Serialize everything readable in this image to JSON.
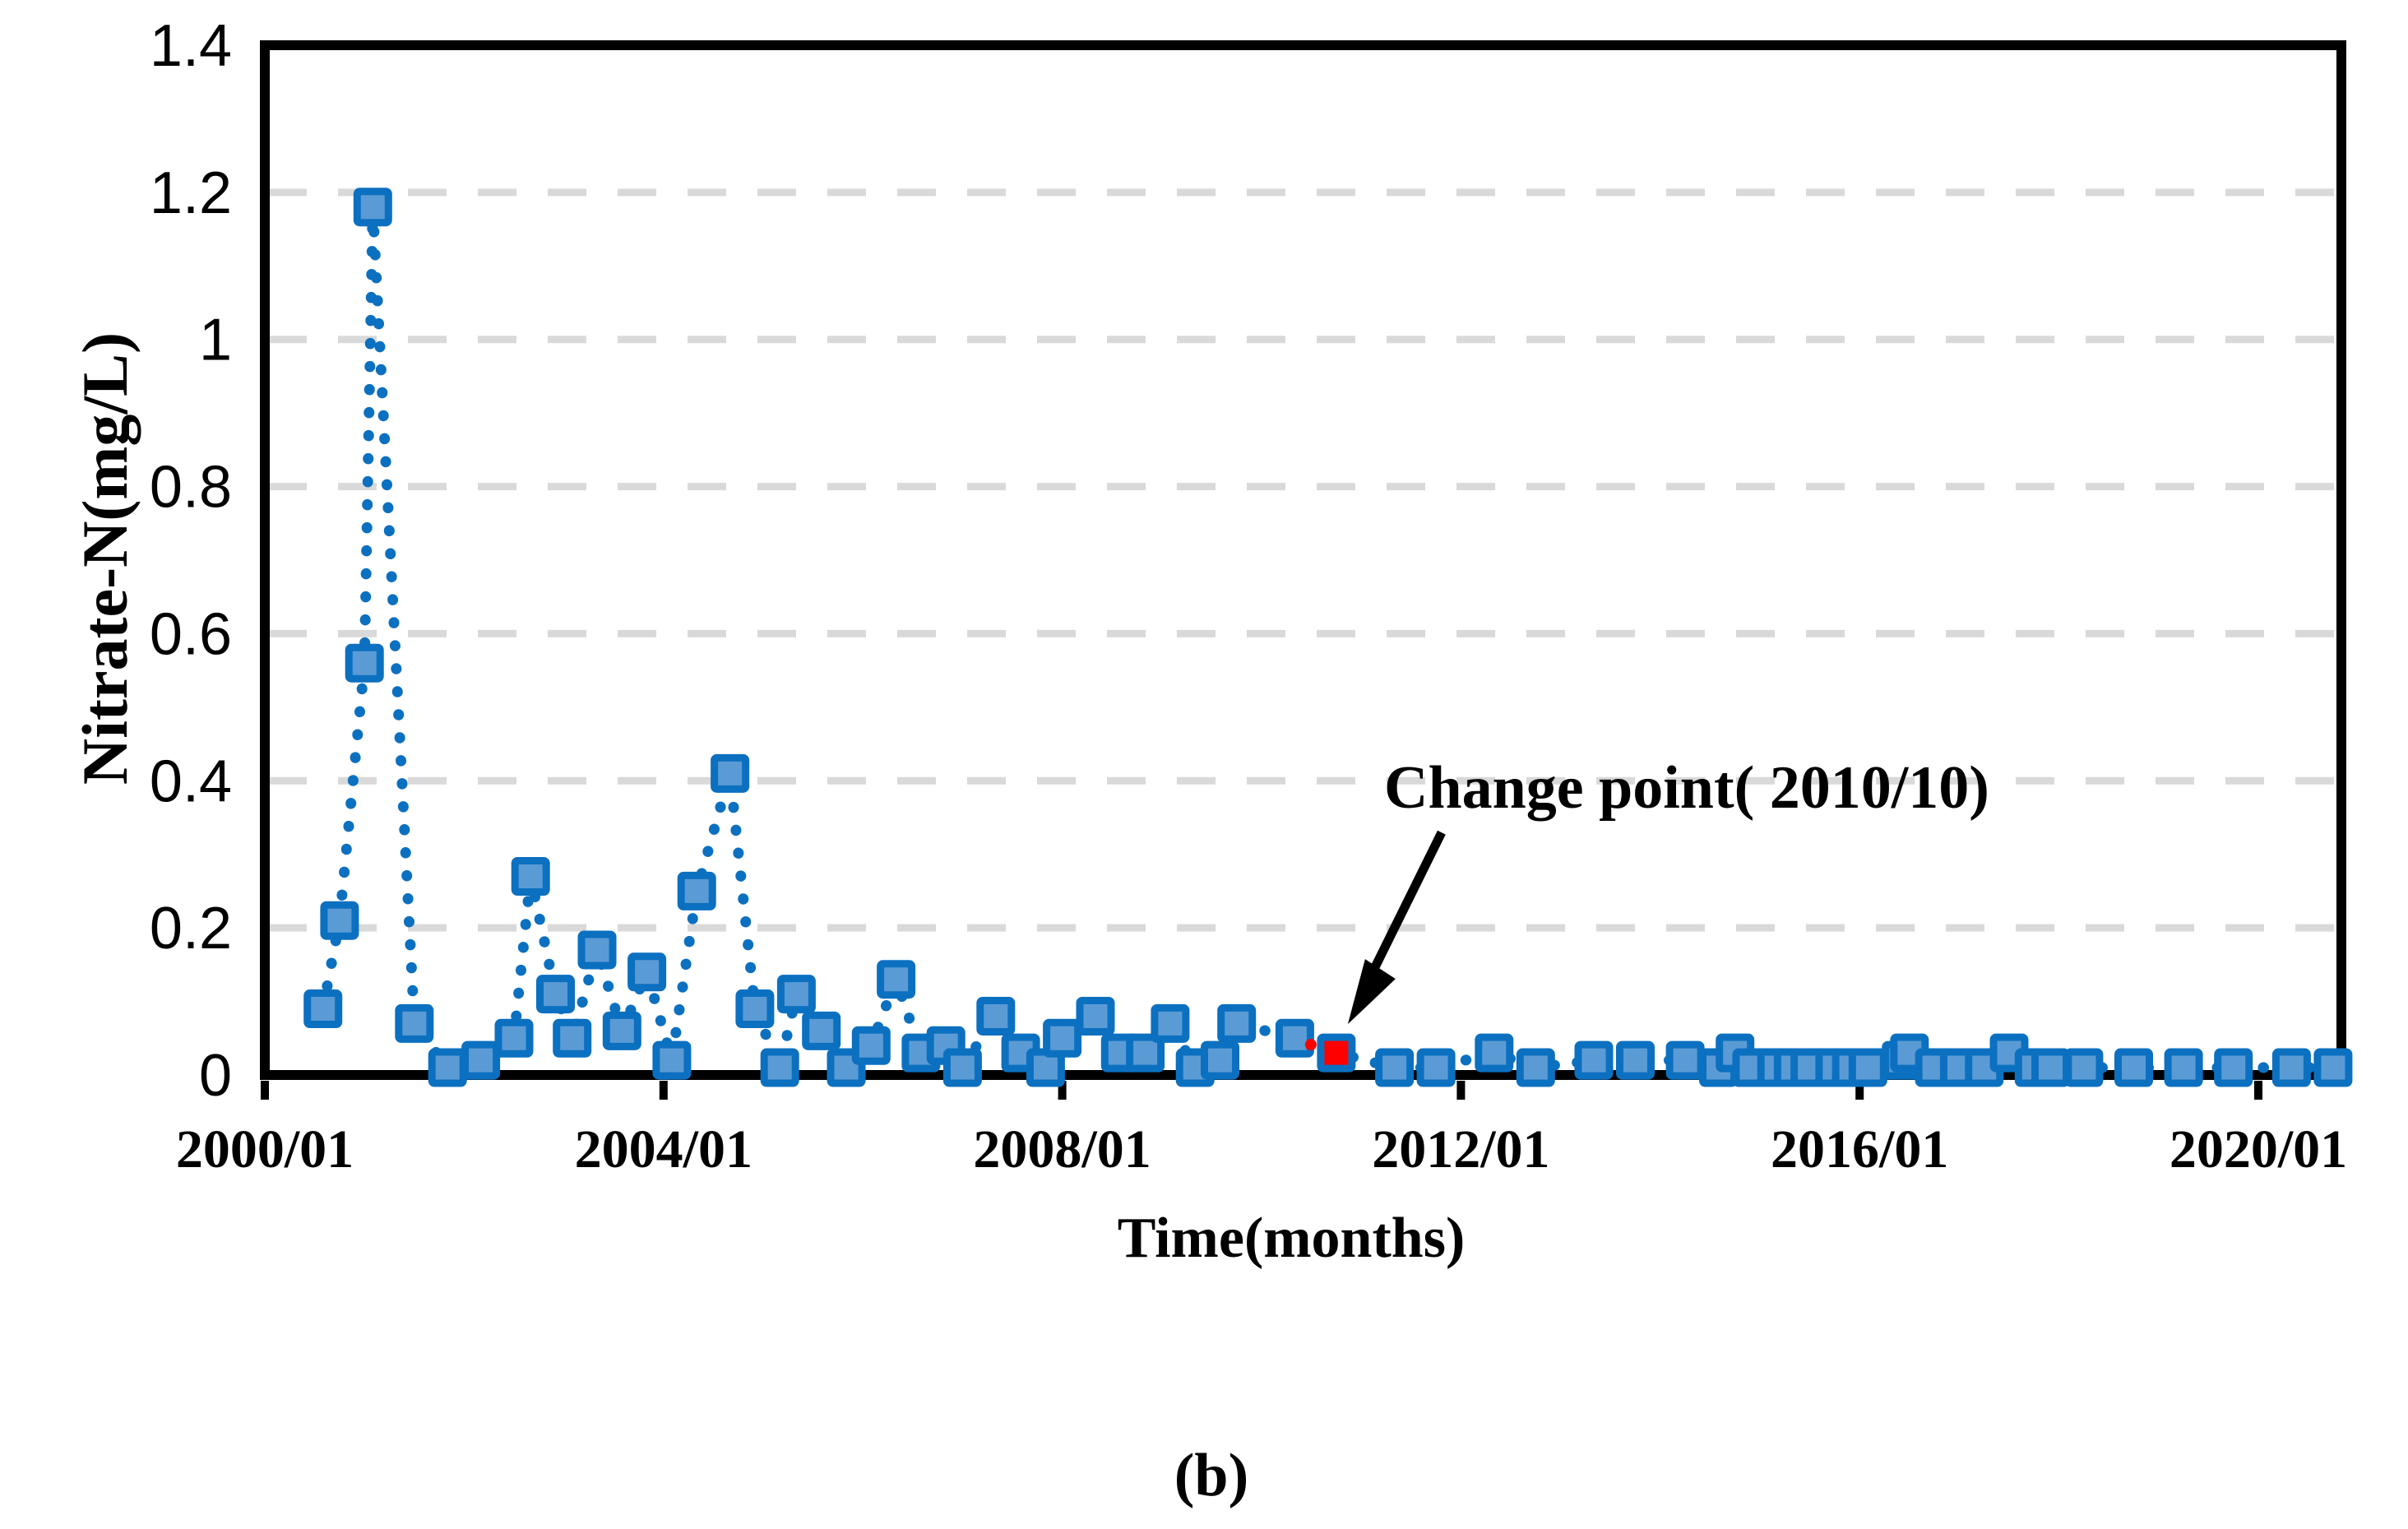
{
  "figure": {
    "caption": "(b)"
  },
  "chart_data": {
    "type": "scatter",
    "title": "",
    "xlabel": "Time(months)",
    "ylabel": "Nitrate-N(mg/L)",
    "legend": "none",
    "grid": "horizontal-dashed",
    "xlim_months": [
      0,
      250
    ],
    "ylim": [
      0,
      1.4
    ],
    "x_ticks": [
      {
        "m": 0,
        "label": "2000/01"
      },
      {
        "m": 48,
        "label": "2004/01"
      },
      {
        "m": 96,
        "label": "2008/01"
      },
      {
        "m": 144,
        "label": "2012/01"
      },
      {
        "m": 192,
        "label": "2016/01"
      },
      {
        "m": 240,
        "label": "2020/01"
      }
    ],
    "y_ticks": [
      {
        "v": 0,
        "label": "0"
      },
      {
        "v": 0.2,
        "label": "0.2"
      },
      {
        "v": 0.4,
        "label": "0.4"
      },
      {
        "v": 0.6,
        "label": "0.6"
      },
      {
        "v": 0.8,
        "label": "0.8"
      },
      {
        "v": 1.0,
        "label": "1"
      },
      {
        "v": 1.2,
        "label": "1.2"
      },
      {
        "v": 1.4,
        "label": "1.4"
      }
    ],
    "series": [
      {
        "name": "Nitrate-N",
        "marker": "square",
        "line": "dotted",
        "points": [
          {
            "m": 7,
            "v": 0.09,
            "d": "2000/08"
          },
          {
            "m": 9,
            "v": 0.21,
            "d": "2000/10"
          },
          {
            "m": 12,
            "v": 0.56,
            "d": "2001/01"
          },
          {
            "m": 13,
            "v": 1.18,
            "d": "2001/02"
          },
          {
            "m": 18,
            "v": 0.07,
            "d": "2001/07"
          },
          {
            "m": 22,
            "v": 0.01,
            "d": "2001/11"
          },
          {
            "m": 26,
            "v": 0.02,
            "d": "2002/03"
          },
          {
            "m": 30,
            "v": 0.05,
            "d": "2002/07"
          },
          {
            "m": 32,
            "v": 0.27,
            "d": "2002/09"
          },
          {
            "m": 35,
            "v": 0.11,
            "d": "2002/12"
          },
          {
            "m": 37,
            "v": 0.05,
            "d": "2003/02"
          },
          {
            "m": 40,
            "v": 0.17,
            "d": "2003/05"
          },
          {
            "m": 43,
            "v": 0.06,
            "d": "2003/08"
          },
          {
            "m": 46,
            "v": 0.14,
            "d": "2003/11"
          },
          {
            "m": 49,
            "v": 0.02,
            "d": "2004/02"
          },
          {
            "m": 52,
            "v": 0.25,
            "d": "2004/05"
          },
          {
            "m": 56,
            "v": 0.41,
            "d": "2004/09"
          },
          {
            "m": 59,
            "v": 0.09,
            "d": "2004/12"
          },
          {
            "m": 62,
            "v": 0.01,
            "d": "2005/03"
          },
          {
            "m": 64,
            "v": 0.11,
            "d": "2005/05"
          },
          {
            "m": 67,
            "v": 0.06,
            "d": "2005/08"
          },
          {
            "m": 70,
            "v": 0.01,
            "d": "2005/11"
          },
          {
            "m": 73,
            "v": 0.04,
            "d": "2006/02"
          },
          {
            "m": 76,
            "v": 0.13,
            "d": "2006/05"
          },
          {
            "m": 79,
            "v": 0.03,
            "d": "2006/08"
          },
          {
            "m": 82,
            "v": 0.04,
            "d": "2006/11"
          },
          {
            "m": 84,
            "v": 0.01,
            "d": "2007/01"
          },
          {
            "m": 88,
            "v": 0.08,
            "d": "2007/05"
          },
          {
            "m": 91,
            "v": 0.03,
            "d": "2007/08"
          },
          {
            "m": 94,
            "v": 0.01,
            "d": "2007/11"
          },
          {
            "m": 96,
            "v": 0.05,
            "d": "2008/01"
          },
          {
            "m": 100,
            "v": 0.08,
            "d": "2008/05"
          },
          {
            "m": 103,
            "v": 0.03,
            "d": "2008/08"
          },
          {
            "m": 106,
            "v": 0.03,
            "d": "2008/11"
          },
          {
            "m": 109,
            "v": 0.07,
            "d": "2009/02"
          },
          {
            "m": 112,
            "v": 0.01,
            "d": "2009/05"
          },
          {
            "m": 115,
            "v": 0.02,
            "d": "2009/08"
          },
          {
            "m": 117,
            "v": 0.07,
            "d": "2009/10"
          },
          {
            "m": 124,
            "v": 0.05,
            "d": "2010/05"
          },
          {
            "m": 129,
            "v": 0.03,
            "d": "2010/10",
            "cp": true
          },
          {
            "m": 136,
            "v": 0.01,
            "d": "2011/05"
          },
          {
            "m": 141,
            "v": 0.01,
            "d": "2011/10"
          },
          {
            "m": 148,
            "v": 0.03,
            "d": "2012/05"
          },
          {
            "m": 153,
            "v": 0.01,
            "d": "2012/10"
          },
          {
            "m": 160,
            "v": 0.02,
            "d": "2013/05"
          },
          {
            "m": 165,
            "v": 0.02,
            "d": "2013/10"
          },
          {
            "m": 171,
            "v": 0.02,
            "d": "2014/04"
          },
          {
            "m": 175,
            "v": 0.01,
            "d": "2014/08"
          },
          {
            "m": 177,
            "v": 0.03,
            "d": "2014/10"
          },
          {
            "m": 179,
            "v": 0.01,
            "d": "2014/12"
          },
          {
            "m": 182,
            "v": 0.01,
            "d": "2015/03"
          },
          {
            "m": 184,
            "v": 0.01,
            "d": "2015/05"
          },
          {
            "m": 186,
            "v": 0.01,
            "d": "2015/07"
          },
          {
            "m": 189,
            "v": 0.01,
            "d": "2015/10"
          },
          {
            "m": 191,
            "v": 0.01,
            "d": "2015/12"
          },
          {
            "m": 193,
            "v": 0.01,
            "d": "2016/02"
          },
          {
            "m": 197,
            "v": 0.02,
            "d": "2016/06"
          },
          {
            "m": 198,
            "v": 0.03,
            "d": "2016/07"
          },
          {
            "m": 201,
            "v": 0.01,
            "d": "2016/10"
          },
          {
            "m": 204,
            "v": 0.01,
            "d": "2017/01"
          },
          {
            "m": 207,
            "v": 0.01,
            "d": "2017/04"
          },
          {
            "m": 210,
            "v": 0.03,
            "d": "2017/07"
          },
          {
            "m": 213,
            "v": 0.01,
            "d": "2017/10"
          },
          {
            "m": 215,
            "v": 0.01,
            "d": "2017/12"
          },
          {
            "m": 219,
            "v": 0.01,
            "d": "2018/04"
          },
          {
            "m": 225,
            "v": 0.01,
            "d": "2018/10"
          },
          {
            "m": 231,
            "v": 0.01,
            "d": "2019/04"
          },
          {
            "m": 237,
            "v": 0.01,
            "d": "2019/10"
          },
          {
            "m": 244,
            "v": 0.01,
            "d": "2020/05"
          },
          {
            "m": 249,
            "v": 0.01,
            "d": "2020/10"
          }
        ]
      }
    ],
    "change_point": {
      "date": "2010/10",
      "m": 129,
      "v": 0.03
    },
    "annotation": {
      "text": "Change point( 2010/10)"
    },
    "colors": {
      "marker_fill": "#5B9BD5",
      "marker_border": "#0C70C0",
      "dot_line": "#0C70C0",
      "change_point_fill": "#FF0000",
      "grid": "#D9D9D9",
      "axis": "#000000"
    }
  }
}
